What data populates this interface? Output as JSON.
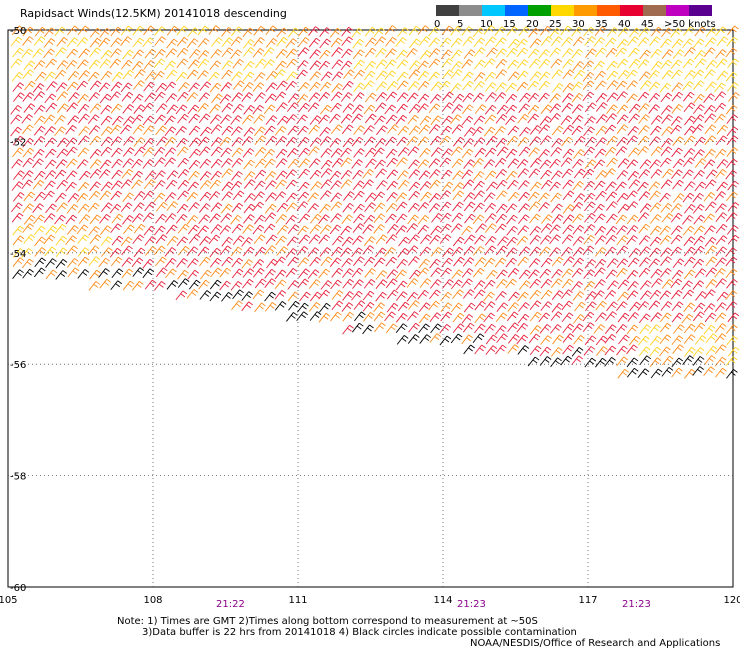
{
  "title": "Rapidsact Winds(12.5KM) 20141018 descending",
  "colorbar": {
    "labels": [
      "0",
      "5",
      "10",
      "15",
      "20",
      "25",
      "30",
      "35",
      "40",
      "45",
      ">50 knots"
    ],
    "colors": [
      "#404040",
      "#8c8c8c",
      "#00c8ff",
      "#0064ff",
      "#00a000",
      "#ffd800",
      "#ff9a00",
      "#ff5a00",
      "#e80030",
      "#a06a50",
      "#c000c0",
      "#5a0090"
    ]
  },
  "map": {
    "lon_ticks": [
      "105",
      "108",
      "111",
      "114",
      "117",
      "120"
    ],
    "lat_ticks": [
      "-50",
      "-52",
      "-54",
      "-56",
      "-58",
      "-60"
    ],
    "lon_range": [
      105,
      120
    ],
    "lat_range": [
      -50,
      -60
    ],
    "swath_southern_edge": [
      [
        105,
        -54.5
      ],
      [
        108,
        -54.8
      ],
      [
        111,
        -55.3
      ],
      [
        114,
        -55.8
      ],
      [
        117,
        -56.2
      ],
      [
        120,
        -56.4
      ]
    ],
    "wind_barb_colors": {
      "dominant": "#e8203c",
      "secondary": "#ff8c1a",
      "light": "#ffd21e",
      "calm_contaminated": "#000000",
      "low": "#189a18"
    }
  },
  "times": [
    "21:22",
    "21:23",
    "21:23"
  ],
  "notes": {
    "line1": "Note: 1) Times are GMT 2)Times along bottom correspond to measurement at ~50S",
    "line2": "3)Data buffer is 22 hrs from 20141018 4) Black circles indicate possible contamination",
    "credit": "NOAA/NESDIS/Office of Research and Applications"
  }
}
